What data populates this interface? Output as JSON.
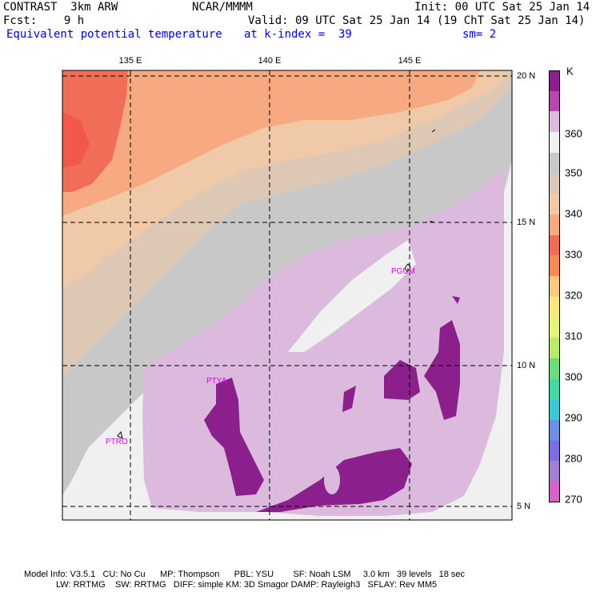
{
  "header": {
    "line1_left": "CONTRAST  3km ARW",
    "line1_center": "NCAR/MMMM",
    "line1_right": "Init: 00 UTC Sat 25 Jan 14",
    "line2_left": "Fcst:    9 h",
    "line2_right": "Valid: 09 UTC Sat 25 Jan 14 (19 ChT Sat 25 Jan 14)",
    "line3_field": "Equivalent potential temperature",
    "line3_level": "at k-index =  39",
    "line3_smooth": "sm= 2"
  },
  "map": {
    "longitude_labels": [
      "135 E",
      "140 E",
      "145 E"
    ],
    "latitude_labels": [
      "20 N",
      "15 N",
      "10 N",
      "5 N"
    ],
    "station_labels": [
      "PGUM",
      "PTYA",
      "PTRO"
    ]
  },
  "colorbar": {
    "unit": "K",
    "tick_labels": [
      "360",
      "350",
      "340",
      "330",
      "320",
      "310",
      "300",
      "290",
      "280",
      "270"
    ],
    "colors": [
      "#8b1f8c",
      "#b44aab",
      "#dbbade",
      "#f0f0f0",
      "#c8c8c8",
      "#dcc8b4",
      "#f0c9a8",
      "#f7a981",
      "#f26d57",
      "#f58b5d",
      "#fbc884",
      "#f6e87c",
      "#e7f47a",
      "#b6eb6c",
      "#6bdc7c",
      "#44d6a4",
      "#3cc8d6",
      "#6a8fe0",
      "#7d6ee0",
      "#a67ed4",
      "#d564c6"
    ]
  },
  "footer": {
    "line1": "Model Info: V3.5.1   CU: No Cu      MP: Thompson      PBL: YSU        SF: Noah LSM     3.0 km   39 levels   18 sec",
    "line2": "LW: RRTMG    SW: RRTMG   DIFF: simple KM: 3D Smagor DAMP: Rayleigh3   SFLAY: Rev MM5"
  }
}
